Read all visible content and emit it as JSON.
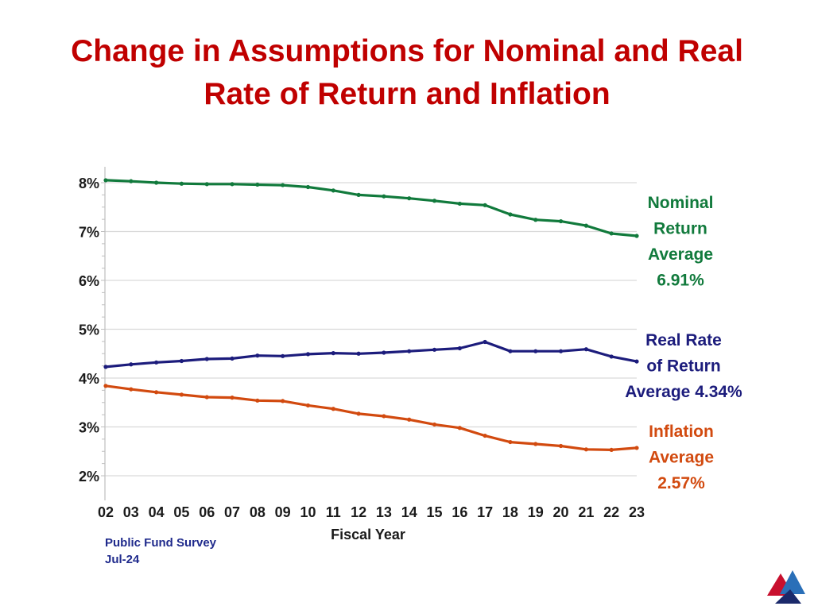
{
  "slide": {
    "title_line1": "Change in Assumptions for Nominal and Real",
    "title_line2": "Rate of Return and Inflation",
    "source_line1": "Public Fund Survey",
    "source_line2": "Jul-24",
    "logo_icon": "triangle-logo-icon"
  },
  "chart_data": {
    "type": "line",
    "xlabel": "Fiscal Year",
    "ylabel": "",
    "categories": [
      "02",
      "03",
      "04",
      "05",
      "06",
      "07",
      "08",
      "09",
      "10",
      "11",
      "12",
      "13",
      "14",
      "15",
      "16",
      "17",
      "18",
      "19",
      "20",
      "21",
      "22",
      "23"
    ],
    "y_ticks": [
      "8%",
      "7%",
      "6%",
      "5%",
      "4%",
      "3%",
      "2%"
    ],
    "ylim": [
      1.5,
      8.2
    ],
    "grid": true,
    "series": [
      {
        "key": "nominal",
        "label_lines": [
          "Nominal",
          "Return",
          "Average",
          "6.91%"
        ],
        "color": "#117a3c",
        "values": [
          8.05,
          8.03,
          8.0,
          7.98,
          7.97,
          7.97,
          7.96,
          7.95,
          7.91,
          7.84,
          7.75,
          7.72,
          7.68,
          7.63,
          7.57,
          7.54,
          7.35,
          7.24,
          7.21,
          7.12,
          6.96,
          6.91
        ]
      },
      {
        "key": "real",
        "label_lines": [
          "Real Rate",
          "of Return",
          "Average 4.34%"
        ],
        "color": "#1c1c7c",
        "values": [
          4.23,
          4.28,
          4.32,
          4.35,
          4.39,
          4.4,
          4.46,
          4.45,
          4.49,
          4.51,
          4.5,
          4.52,
          4.55,
          4.58,
          4.61,
          4.74,
          4.55,
          4.55,
          4.55,
          4.59,
          4.44,
          4.34
        ]
      },
      {
        "key": "inflation",
        "label_lines": [
          "Inflation",
          "Average",
          "2.57%"
        ],
        "color": "#d24a0f",
        "values": [
          3.84,
          3.77,
          3.71,
          3.66,
          3.61,
          3.6,
          3.54,
          3.53,
          3.44,
          3.37,
          3.27,
          3.22,
          3.15,
          3.05,
          2.98,
          2.82,
          2.69,
          2.65,
          2.61,
          2.54,
          2.53,
          2.57
        ]
      }
    ]
  }
}
